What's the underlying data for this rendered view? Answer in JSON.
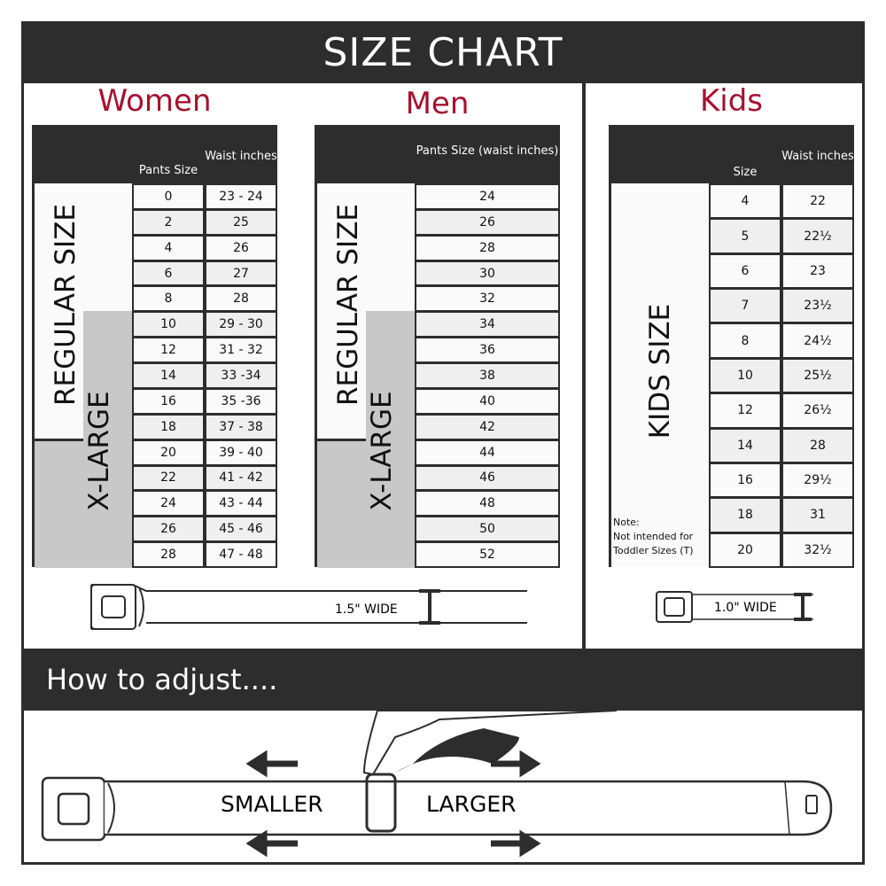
{
  "title": "SIZE CHART",
  "women": {
    "title": "Women",
    "col1": "Pants Size",
    "col2": "Waist inches",
    "regular_label": "REGULAR SIZE",
    "xlarge_label": "X-LARGE",
    "rows": [
      [
        "0",
        "23 - 24"
      ],
      [
        "2",
        "25"
      ],
      [
        "4",
        "26"
      ],
      [
        "6",
        "27"
      ],
      [
        "8",
        "28"
      ],
      [
        "10",
        "29 - 30"
      ],
      [
        "12",
        "31 - 32"
      ],
      [
        "14",
        "33 -34"
      ],
      [
        "16",
        "35 -36"
      ],
      [
        "18",
        "37 - 38"
      ],
      [
        "20",
        "39 - 40"
      ],
      [
        "22",
        "41 - 42"
      ],
      [
        "24",
        "43 - 44"
      ],
      [
        "26",
        "45 - 46"
      ],
      [
        "28",
        "47 - 48"
      ]
    ],
    "belt_width": "1.5\" WIDE"
  },
  "men": {
    "title": "Men",
    "col1": "Pants Size (waist inches)",
    "regular_label": "REGULAR SIZE",
    "xlarge_label": "X-LARGE",
    "rows": [
      "24",
      "26",
      "28",
      "30",
      "32",
      "34",
      "36",
      "38",
      "40",
      "42",
      "44",
      "46",
      "48",
      "50",
      "52"
    ]
  },
  "kids": {
    "title": "Kids",
    "col1": "Size",
    "col2": "Waist inches",
    "label": "KIDS SIZE",
    "note_title": "Note:",
    "note_text": "Not intended for Toddler Sizes (T)",
    "rows": [
      [
        "4",
        "22"
      ],
      [
        "5",
        "22½"
      ],
      [
        "6",
        "23"
      ],
      [
        "7",
        "23½"
      ],
      [
        "8",
        "24½"
      ],
      [
        "10",
        "25½"
      ],
      [
        "12",
        "26½"
      ],
      [
        "14",
        "28"
      ],
      [
        "16",
        "29½"
      ],
      [
        "18",
        "31"
      ],
      [
        "20",
        "32½"
      ]
    ],
    "belt_width": "1.0\" WIDE"
  },
  "adjust": {
    "title": "How to adjust....",
    "smaller": "SMALLER",
    "larger": "LARGER"
  },
  "colors": {
    "dark": "#2d2d2d",
    "accent": "#a6112f",
    "xlarge_gray": "#c8c8c8"
  }
}
